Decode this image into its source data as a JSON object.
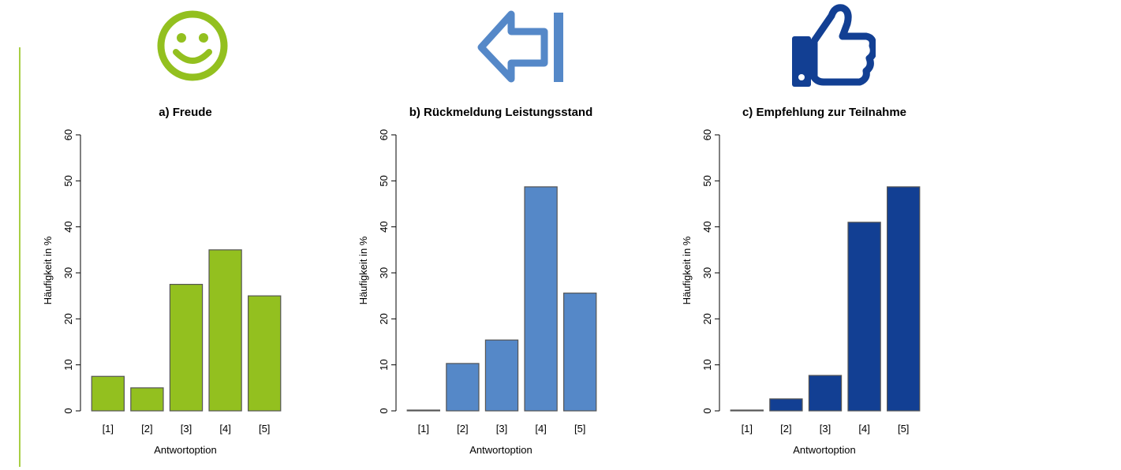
{
  "colors": {
    "accent_line": "#a8cf45",
    "green": "#93c01f",
    "blue": "#5588c8",
    "navy": "#123f93",
    "bar_outline": "#555555"
  },
  "icons": [
    {
      "name": "smiley-icon",
      "color": "#93c01f"
    },
    {
      "name": "arrow-left-bar-icon",
      "color": "#5588c8"
    },
    {
      "name": "thumbs-up-icon",
      "color": "#123f93"
    }
  ],
  "chart_data": [
    {
      "type": "bar",
      "title": "a) Freude",
      "xlabel": "Antwortoption",
      "ylabel": "Häufigkeit in %",
      "categories": [
        "[1]",
        "[2]",
        "[3]",
        "[4]",
        "[5]"
      ],
      "values": [
        7.5,
        5,
        27.5,
        35,
        25
      ],
      "ylim": [
        0,
        60
      ],
      "yticks": [
        "0",
        "10",
        "20",
        "30",
        "40",
        "50",
        "60"
      ],
      "color": "#93c01f",
      "grid": false
    },
    {
      "type": "bar",
      "title": "b) Rückmeldung Leistungsstand",
      "xlabel": "Antwortoption",
      "ylabel": "Häufigkeit in %",
      "categories": [
        "[1]",
        "[2]",
        "[3]",
        "[4]",
        "[5]"
      ],
      "values": [
        0,
        10.3,
        15.4,
        48.7,
        25.6
      ],
      "ylim": [
        0,
        60
      ],
      "yticks": [
        "0",
        "10",
        "20",
        "30",
        "40",
        "50",
        "60"
      ],
      "color": "#5588c8",
      "grid": false
    },
    {
      "type": "bar",
      "title": "c) Empfehlung zur Teilnahme",
      "xlabel": "Antwortoption",
      "ylabel": "Häufigkeit in %",
      "categories": [
        "[1]",
        "[2]",
        "[3]",
        "[4]",
        "[5]"
      ],
      "values": [
        0,
        2.6,
        7.7,
        41,
        48.7
      ],
      "ylim": [
        0,
        60
      ],
      "yticks": [
        "0",
        "10",
        "20",
        "30",
        "40",
        "50",
        "60"
      ],
      "color": "#123f93",
      "grid": false
    }
  ]
}
